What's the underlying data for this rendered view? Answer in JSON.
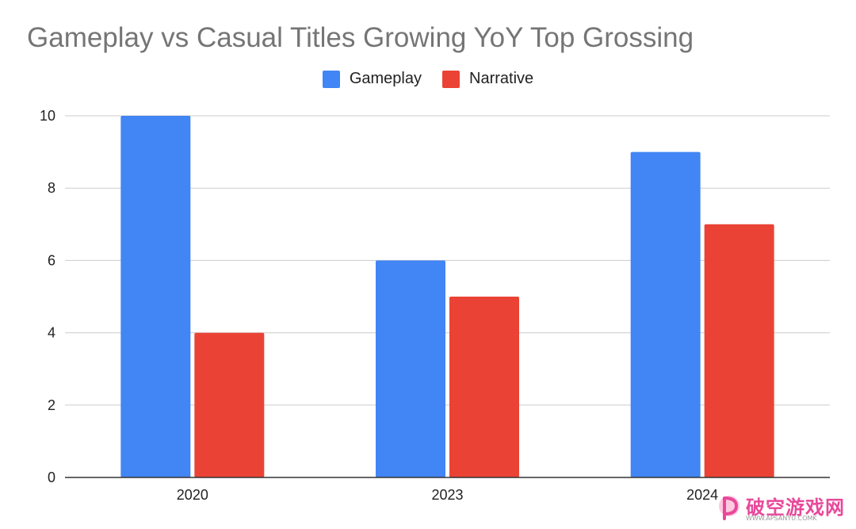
{
  "chart_data": {
    "type": "bar",
    "title": "Gameplay vs Casual Titles Growing YoY Top Grossing",
    "categories": [
      "2020",
      "2023",
      "2024"
    ],
    "series": [
      {
        "name": "Gameplay",
        "values": [
          10,
          6,
          9
        ],
        "color": "#4285f4"
      },
      {
        "name": "Narrative",
        "values": [
          4,
          5,
          7
        ],
        "color": "#ea4335"
      }
    ],
    "xlabel": "",
    "ylabel": "",
    "ylim": [
      0,
      10
    ],
    "yticks": [
      "0",
      "2",
      "4",
      "6",
      "8",
      "10"
    ],
    "grid": true,
    "legend_position": "top"
  },
  "watermark": {
    "text": "破空游戏网",
    "subtext": "WWW.APSANYU.COMK",
    "color": "#e8489a"
  }
}
